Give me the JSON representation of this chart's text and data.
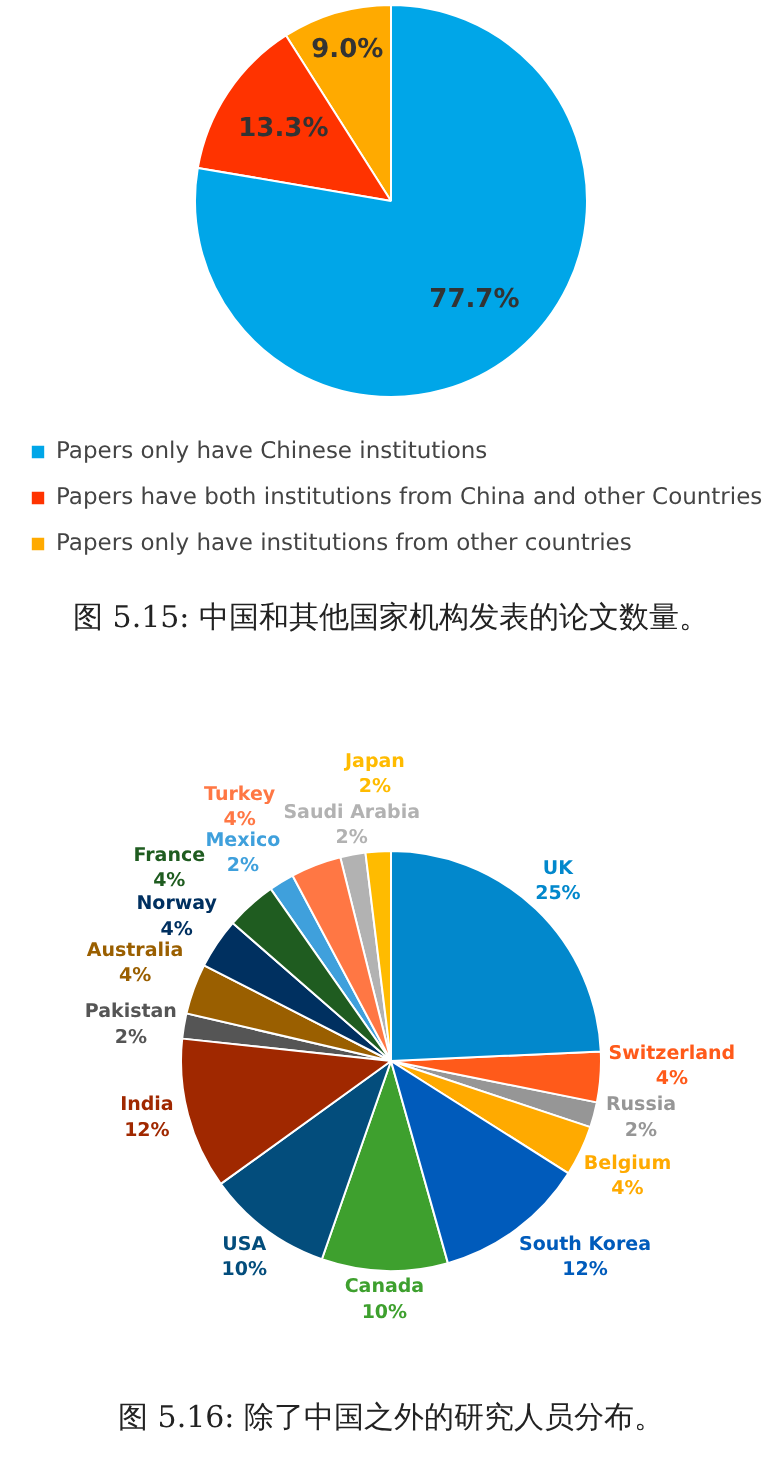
{
  "chart_data": [
    {
      "type": "pie",
      "categories": [
        "Papers only have Chinese institutions",
        "Papers have both institutions from China and other Countries",
        "Papers only have institutions from other countries"
      ],
      "values": [
        77.7,
        13.3,
        9.0
      ],
      "colors": [
        "#00a6e8",
        "#ff3300",
        "#ffaa00"
      ],
      "value_labels": [
        "77.7%",
        "13.3%",
        "9.0%"
      ],
      "legend": "bottom",
      "annotations": [
        "图 5.15: 中国和其他国家机构发表的论文数量。"
      ]
    },
    {
      "type": "pie",
      "categories": [
        "UK",
        "Switzerland",
        "Russia",
        "Belgium",
        "South Korea",
        "Canada",
        "USA",
        "India",
        "Pakistan",
        "Australia",
        "Norway",
        "France",
        "Mexico",
        "Turkey",
        "Saudi Arabia",
        "Japan"
      ],
      "values": [
        25,
        4,
        2,
        4,
        12,
        10,
        10,
        12,
        2,
        4,
        4,
        4,
        2,
        4,
        2,
        2
      ],
      "colors": [
        "#0288cc",
        "#ff5a1a",
        "#969696",
        "#ffaa00",
        "#005bbb",
        "#3ea02e",
        "#034d7c",
        "#a02800",
        "#555555",
        "#9a5f00",
        "#003060",
        "#1f5c20",
        "#3fa0dc",
        "#ff7744",
        "#b2b2b2",
        "#ffbb00"
      ],
      "value_labels": [
        "25%",
        "4%",
        "2%",
        "4%",
        "12%",
        "10%",
        "10%",
        "12%",
        "2%",
        "4%",
        "4%",
        "4%",
        "2%",
        "4%",
        "2%",
        "2%"
      ],
      "legend": false,
      "annotations": [
        "图 5.16: 除了中国之外的研究人员分布。"
      ]
    }
  ]
}
